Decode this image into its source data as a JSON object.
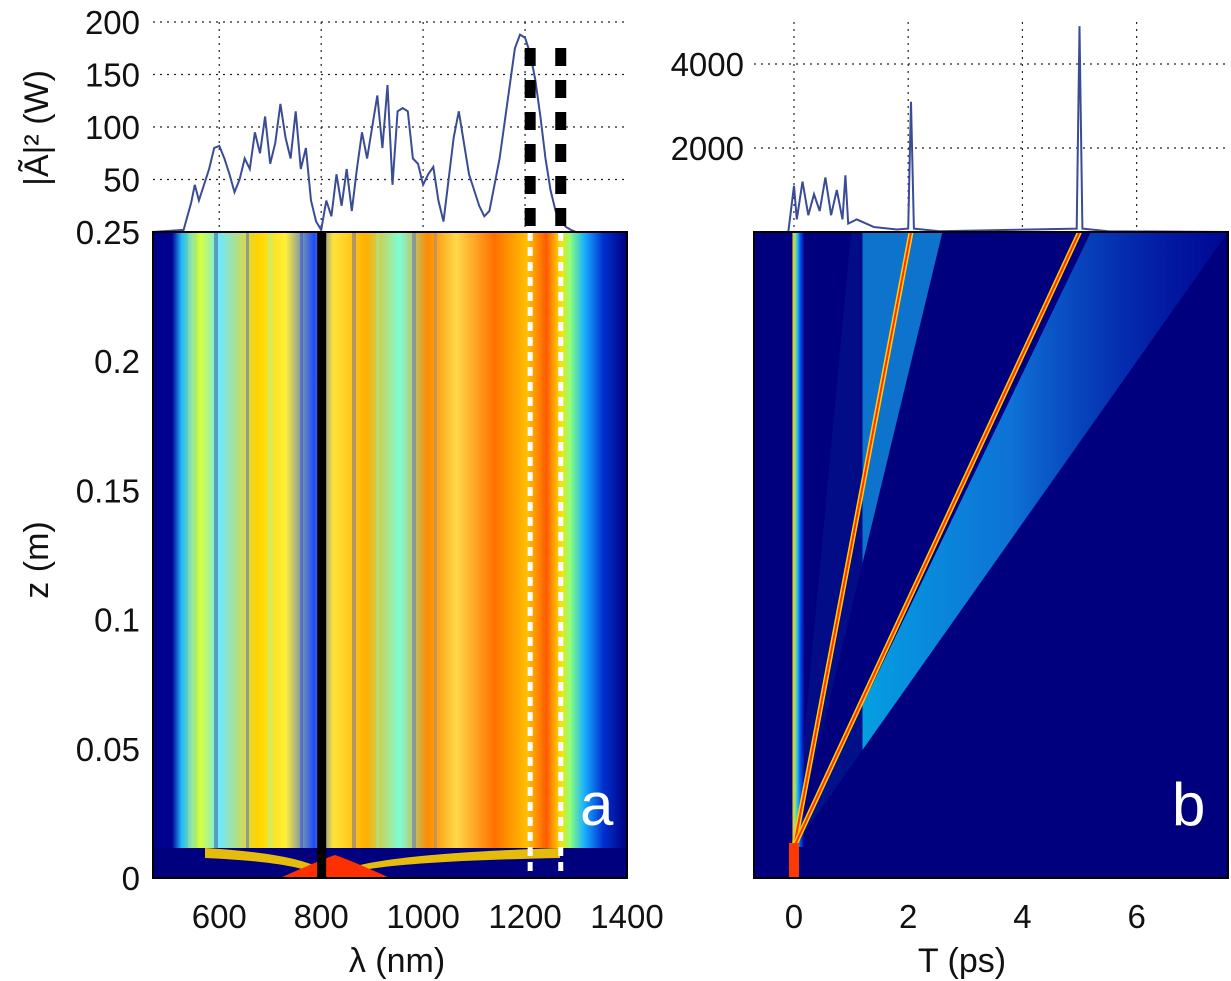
{
  "chart_data": [
    {
      "type": "line",
      "panel": "a-spectrum",
      "ylabel": "|Ã|² (W)",
      "xlim": [
        470,
        1400
      ],
      "ylim": [
        0,
        200
      ],
      "yticks": [
        200,
        150,
        100,
        50
      ],
      "series": [
        {
          "x": [
            470,
            530,
            545,
            552,
            560,
            570,
            580,
            590,
            600,
            610,
            620,
            630,
            640,
            650,
            660,
            670,
            680,
            690,
            700,
            710,
            720,
            730,
            740,
            750,
            760,
            770,
            780,
            790,
            800,
            810,
            820,
            830,
            840,
            850,
            860,
            870,
            880,
            890,
            900,
            910,
            920,
            930,
            940,
            950,
            960,
            970,
            980,
            990,
            1000,
            1010,
            1020,
            1030,
            1040,
            1050,
            1060,
            1070,
            1080,
            1090,
            1100,
            1110,
            1120,
            1130,
            1140,
            1150,
            1160,
            1170,
            1180,
            1190,
            1200,
            1210,
            1220,
            1230,
            1240,
            1250,
            1260,
            1270,
            1280,
            1290,
            1300,
            1320,
            1340,
            1370,
            1400
          ],
          "y": [
            0,
            2,
            28,
            45,
            30,
            45,
            60,
            80,
            82,
            70,
            55,
            38,
            50,
            70,
            60,
            95,
            75,
            110,
            65,
            85,
            122,
            90,
            70,
            115,
            60,
            80,
            30,
            10,
            2,
            30,
            15,
            55,
            25,
            60,
            20,
            60,
            95,
            70,
            100,
            130,
            80,
            140,
            45,
            115,
            118,
            115,
            70,
            65,
            45,
            55,
            62,
            30,
            10,
            50,
            90,
            115,
            85,
            55,
            40,
            25,
            15,
            20,
            45,
            70,
            105,
            140,
            175,
            188,
            185,
            170,
            145,
            110,
            70,
            40,
            20,
            10,
            5,
            2,
            0,
            0,
            0,
            0,
            0
          ]
        }
      ],
      "markers": {
        "dashed_lines_x": [
          1210,
          1270
        ],
        "dashed_color": "#000000"
      }
    },
    {
      "type": "heatmap",
      "panel": "a",
      "label": "a",
      "xlabel": "λ (nm)",
      "ylabel": "z (m)",
      "xlim": [
        470,
        1400
      ],
      "ylim": [
        0,
        0.25
      ],
      "xticks": [
        600,
        800,
        1000,
        1200,
        1400
      ],
      "yticks": [
        "0",
        "0.05",
        "0.1",
        "0.15",
        "0.2",
        "0.25"
      ],
      "colormap": "jet",
      "annotations": {
        "black_line_x": 800,
        "dashed_lines_x": [
          1210,
          1270
        ],
        "dashed_color": "#ffffff"
      }
    },
    {
      "type": "line",
      "panel": "b-temporal",
      "xlim": [
        -0.7,
        7.6
      ],
      "ylim": [
        0,
        5000
      ],
      "yticks": [
        "4000",
        "2000"
      ],
      "peaks": [
        {
          "t": 2.05,
          "value": 3100
        },
        {
          "t": 5.0,
          "value": 4900
        }
      ]
    },
    {
      "type": "heatmap",
      "panel": "b",
      "label": "b",
      "xlabel": "T (ps)",
      "xlim": [
        -0.7,
        7.6
      ],
      "ylim": [
        0,
        0.25
      ],
      "xticks": [
        0,
        2,
        4,
        6
      ],
      "colormap": "jet",
      "trajectories": [
        {
          "t_end": 2.05,
          "z_end": 0.25
        },
        {
          "t_end": 5.0,
          "z_end": 0.25
        }
      ]
    }
  ],
  "colors": {
    "line": "#3a4c96",
    "heat_background": "#00007f",
    "black": "#000000",
    "white": "#ffffff"
  }
}
